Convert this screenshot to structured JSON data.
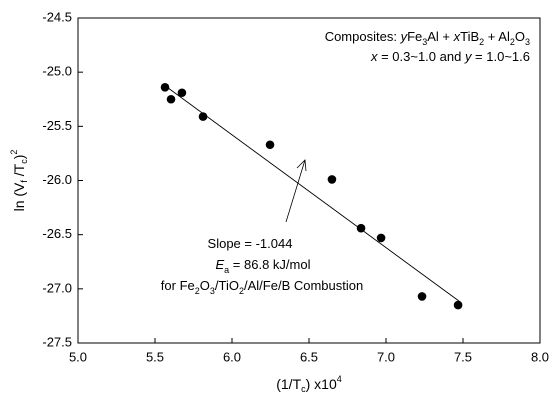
{
  "chart_data": {
    "type": "scatter",
    "x_label": [
      {
        "t": "(1/T"
      },
      {
        "t": "c",
        "s": "sub"
      },
      {
        "t": ") x10"
      },
      {
        "t": "4",
        "s": "sup"
      }
    ],
    "y_label": [
      {
        "t": "ln (V"
      },
      {
        "t": "f",
        "s": "sub"
      },
      {
        "t": " /T"
      },
      {
        "t": "c",
        "s": "sub"
      },
      {
        "t": ")"
      },
      {
        "t": "2",
        "s": "sup"
      }
    ],
    "x": [
      5.565,
      5.604,
      5.675,
      5.812,
      6.247,
      6.649,
      6.838,
      6.968,
      7.234,
      7.468
    ],
    "values": [
      -25.14,
      -25.25,
      -25.19,
      -25.41,
      -25.67,
      -25.99,
      -26.44,
      -26.53,
      -27.07,
      -27.15
    ],
    "color": "#000000",
    "fit_line": {
      "x": [
        5.56,
        7.49
      ],
      "y": [
        -25.12,
        -27.13
      ]
    },
    "xlim": [
      5.0,
      8.0
    ],
    "xticks": [
      {
        "value": 5,
        "label": "5.0"
      },
      5.5,
      {
        "value": 6,
        "label": "6.0"
      },
      6.5,
      {
        "value": 7,
        "label": "7.0"
      },
      7.5,
      {
        "value": 8,
        "label": "8.0"
      }
    ],
    "ylim": [
      -27.5,
      -24.5
    ],
    "yticks": [
      -27.5,
      {
        "value": -27,
        "label": "-27.0"
      },
      -26.5,
      {
        "value": -26,
        "label": "-26.0"
      },
      -25.5,
      {
        "value": -25,
        "label": "-25.0"
      },
      -24.5
    ],
    "annotations": [
      [
        {
          "t": "Composites: "
        },
        {
          "t": "y",
          "s": "i"
        },
        {
          "t": "Fe"
        },
        {
          "t": "3",
          "s": "sub"
        },
        {
          "t": "Al + "
        },
        {
          "t": "x",
          "s": "i"
        },
        {
          "t": "TiB"
        },
        {
          "t": "2",
          "s": "sub"
        },
        {
          "t": " + Al"
        },
        {
          "t": "2",
          "s": "sub"
        },
        {
          "t": "O"
        },
        {
          "t": "3",
          "s": "sub"
        }
      ],
      [
        {
          "t": "x",
          "s": "i"
        },
        {
          "t": " = 0.3~1.0 and "
        },
        {
          "t": "y",
          "s": "i"
        },
        {
          "t": " = 1.0~1.6"
        }
      ],
      [
        {
          "t": "Slope = -1.044"
        }
      ],
      [
        {
          "t": "E",
          "s": "i"
        },
        {
          "t": "a",
          "s": "sub"
        },
        {
          "t": " = 86.8 kJ/mol"
        }
      ],
      [
        {
          "t": "for Fe"
        },
        {
          "t": "2",
          "s": "sub"
        },
        {
          "t": "O"
        },
        {
          "t": "3",
          "s": "sub"
        },
        {
          "t": "/TiO"
        },
        {
          "t": "2",
          "s": "sub"
        },
        {
          "t": "/Al/Fe/B Combustion"
        }
      ]
    ]
  }
}
